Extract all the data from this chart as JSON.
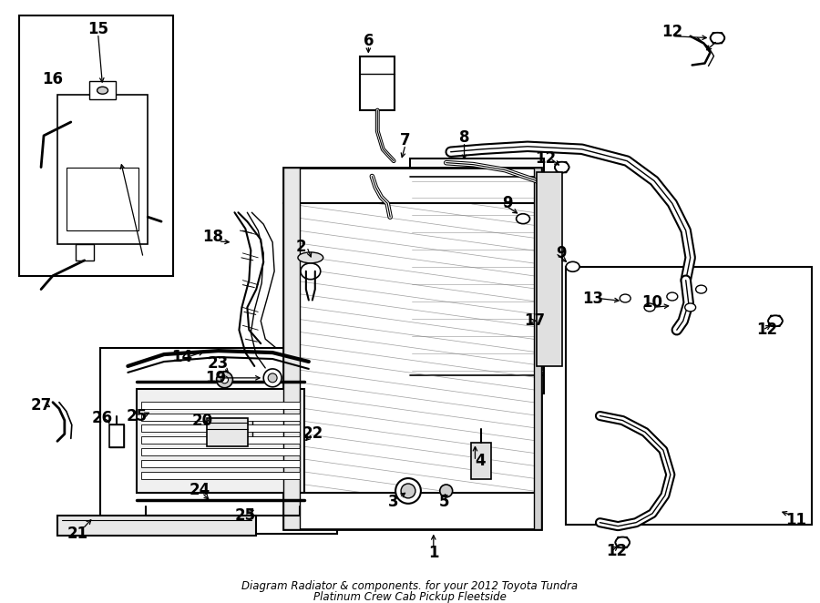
{
  "bg_color": "#ffffff",
  "fig_width": 9.0,
  "fig_height": 6.62,
  "dpi": 100,
  "title1": "Diagram Radiator & components. for your 2012 Toyota Tundra",
  "title2": "Platinum Crew Cab Pickup Fleetside"
}
